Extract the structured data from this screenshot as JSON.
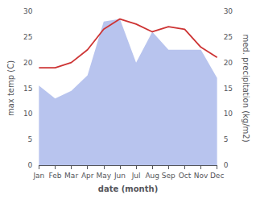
{
  "chart_data": {
    "type": "line",
    "xlabel": "date (month)",
    "ylabel": "max temp (C)",
    "y2label": "med. precipitation (kg/m2)",
    "categories": [
      "Jan",
      "Feb",
      "Mar",
      "Apr",
      "May",
      "Jun",
      "Jul",
      "Aug",
      "Sep",
      "Oct",
      "Nov",
      "Dec"
    ],
    "series": [
      {
        "type": "area",
        "axis": "y2",
        "color": "#b8c4ee",
        "values": [
          15.5,
          13.0,
          14.5,
          17.5,
          28.0,
          28.5,
          20.0,
          26.0,
          22.5,
          22.5,
          22.5,
          17.0
        ]
      },
      {
        "type": "line",
        "color": "#cd3333",
        "values": [
          19.0,
          19.0,
          20.0,
          22.5,
          26.5,
          28.5,
          27.5,
          26.0,
          27.0,
          26.5,
          23.0,
          21.0
        ]
      }
    ],
    "ylim": [
      0,
      30
    ],
    "yticks": [
      0,
      5,
      10,
      15,
      20,
      25,
      30
    ],
    "y2lim": [
      0,
      30
    ],
    "y2ticks": [
      0,
      5,
      10,
      15,
      20,
      25,
      30
    ],
    "grid": false
  }
}
